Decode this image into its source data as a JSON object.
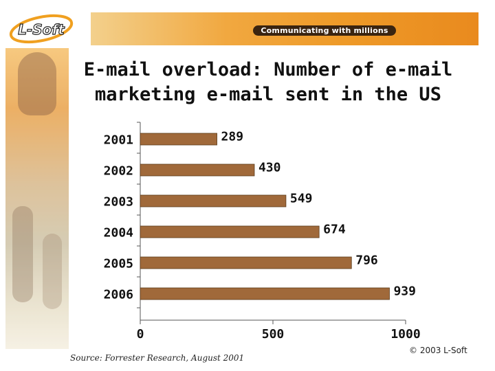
{
  "header": {
    "logo_text": "L-Soft",
    "banner_text": "Communicating with millions"
  },
  "slide": {
    "title_line1": "E-mail overload: Number of e-mail",
    "title_line2": "marketing e-mail sent in the US",
    "source": "Source: Forrester Research, August 2001",
    "copyright": "© 2003 L-Soft"
  },
  "colors": {
    "bar_fill": "#A0693A",
    "bar_edge": "#5a3a1a",
    "banner_orange": "#EE9A28"
  },
  "chart_data": {
    "type": "bar",
    "orientation": "horizontal",
    "title": "E-mail overload: Number of e-mail marketing e-mail sent in the US",
    "categories": [
      "2001",
      "2002",
      "2003",
      "2004",
      "2005",
      "2006"
    ],
    "values": [
      289,
      430,
      549,
      674,
      796,
      939
    ],
    "xlim": [
      0,
      1000
    ],
    "xticks": [
      0,
      500,
      1000
    ],
    "xlabel": "",
    "ylabel": "",
    "grid": false,
    "legend": "none"
  }
}
